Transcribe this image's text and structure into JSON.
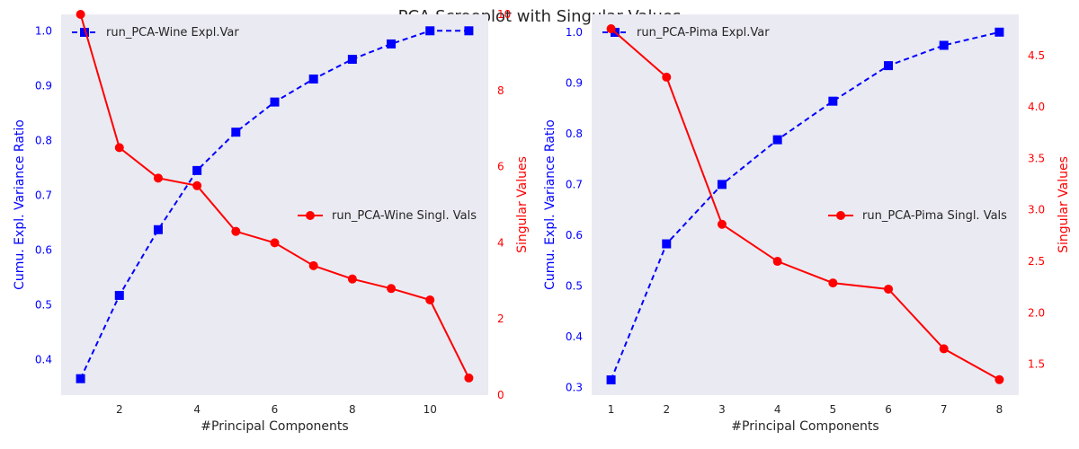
{
  "figure": {
    "title": "PCA Screeplot with Singular Values"
  },
  "colors": {
    "axes_bg": "#EAEAF2",
    "left_series": "#0000FF",
    "right_series": "#FF0000",
    "text": "#262626"
  },
  "chart_data": [
    {
      "type": "line",
      "name": "wine",
      "xlabel": "#Principal Components",
      "ylabel_left": "Cumu. Expl. Variance Ratio",
      "ylabel_right": "Singular Values",
      "xlim": [
        0.5,
        11.5
      ],
      "ylim_left": [
        0.335,
        1.03
      ],
      "ylim_right": [
        0,
        10.0
      ],
      "xticks": [
        2,
        4,
        6,
        8,
        10
      ],
      "yticks_left": [
        0.4,
        0.5,
        0.6,
        0.7,
        0.8,
        0.9,
        1.0
      ],
      "yticks_right": [
        0,
        2,
        4,
        6,
        8,
        10
      ],
      "grid": false,
      "series": [
        {
          "name": "run_PCA-Wine Expl.Var",
          "axis": "left",
          "style": "dashed",
          "marker": "square",
          "legend_position": "upper-left",
          "x": [
            1,
            2,
            3,
            4,
            5,
            6,
            7,
            8,
            9,
            10,
            11
          ],
          "y": [
            0.365,
            0.517,
            0.637,
            0.745,
            0.815,
            0.87,
            0.912,
            0.948,
            0.976,
            1.0,
            1.0
          ]
        },
        {
          "name": "run_PCA-Wine Singl. Vals",
          "axis": "right",
          "style": "solid",
          "marker": "circle",
          "legend_position": "center-right",
          "x": [
            1,
            2,
            3,
            4,
            5,
            6,
            7,
            8,
            9,
            10,
            11
          ],
          "y": [
            10.0,
            6.5,
            5.7,
            5.5,
            4.3,
            4.0,
            3.4,
            3.05,
            2.8,
            2.5,
            0.45
          ]
        }
      ]
    },
    {
      "type": "line",
      "name": "pima",
      "xlabel": "#Principal Components",
      "ylabel_left": "Cumu. Expl. Variance Ratio",
      "ylabel_right": "Singular Values",
      "xlim": [
        0.65,
        8.35
      ],
      "ylim_left": [
        0.285,
        1.035
      ],
      "ylim_right": [
        1.2,
        4.9
      ],
      "xticks": [
        1,
        2,
        3,
        4,
        5,
        6,
        7,
        8
      ],
      "yticks_left": [
        0.3,
        0.4,
        0.5,
        0.6,
        0.7,
        0.8,
        0.9,
        1.0
      ],
      "yticks_right": [
        1.5,
        2.0,
        2.5,
        3.0,
        3.5,
        4.0,
        4.5
      ],
      "grid": false,
      "series": [
        {
          "name": "run_PCA-Pima Expl.Var",
          "axis": "left",
          "style": "dashed",
          "marker": "square",
          "legend_position": "upper-left",
          "x": [
            1,
            2,
            3,
            4,
            5,
            6,
            7,
            8
          ],
          "y": [
            0.315,
            0.583,
            0.7,
            0.788,
            0.864,
            0.934,
            0.974,
            1.0
          ]
        },
        {
          "name": "run_PCA-Pima Singl. Vals",
          "axis": "right",
          "style": "solid",
          "marker": "circle",
          "legend_position": "center-right",
          "x": [
            1,
            2,
            3,
            4,
            5,
            6,
            7,
            8
          ],
          "y": [
            4.76,
            4.29,
            2.86,
            2.5,
            2.29,
            2.23,
            1.65,
            1.35
          ]
        }
      ]
    }
  ]
}
